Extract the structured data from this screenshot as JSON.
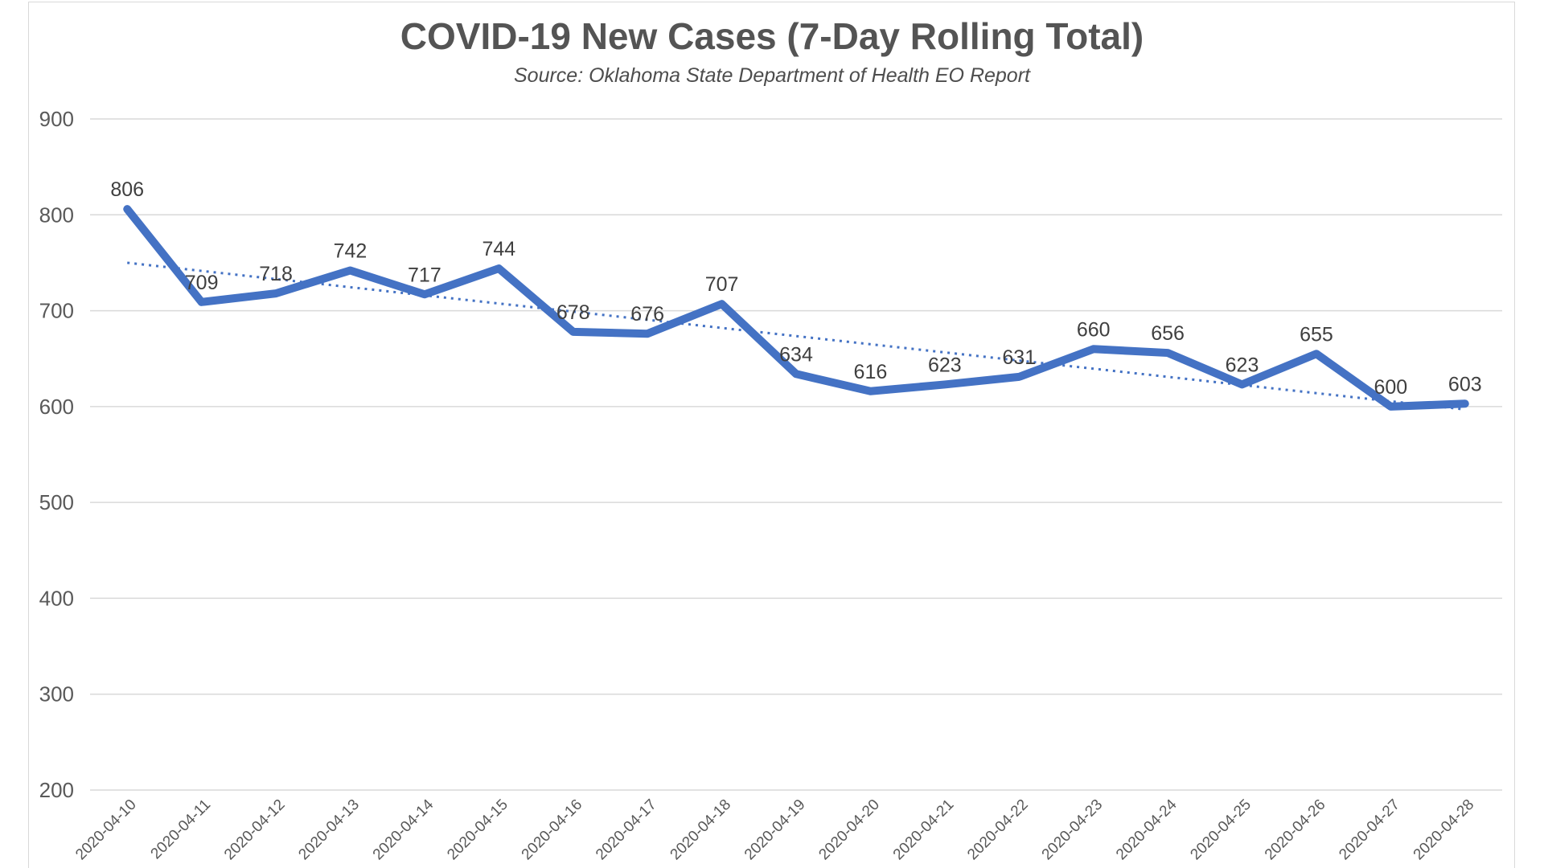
{
  "header": {
    "title": "COVID-19 New Cases (7-Day Rolling Total)",
    "subtitle": "Source: Oklahoma State Department of Health EO Report"
  },
  "colors": {
    "series_line": "#4472c4",
    "trendline": "#4472c4",
    "gridline": "#d9d9d9",
    "frame_border": "#d9d9d9",
    "axis_tick_text": "#595959",
    "data_label_text": "#3f3f3f",
    "title_text": "#545454"
  },
  "chart_data": {
    "type": "line",
    "title": "COVID-19 New Cases (7-Day Rolling Total)",
    "subtitle": "Source: Oklahoma State Department of Health EO Report",
    "categories": [
      "2020-04-10",
      "2020-04-11",
      "2020-04-12",
      "2020-04-13",
      "2020-04-14",
      "2020-04-15",
      "2020-04-16",
      "2020-04-17",
      "2020-04-18",
      "2020-04-19",
      "2020-04-20",
      "2020-04-21",
      "2020-04-22",
      "2020-04-23",
      "2020-04-24",
      "2020-04-25",
      "2020-04-26",
      "2020-04-27",
      "2020-04-28"
    ],
    "values": [
      806,
      709,
      718,
      742,
      717,
      744,
      678,
      676,
      707,
      634,
      616,
      623,
      631,
      660,
      656,
      623,
      655,
      600,
      603
    ],
    "data_labels_shown": true,
    "ylim": [
      200,
      900
    ],
    "yticks": [
      200,
      300,
      400,
      500,
      600,
      700,
      800,
      900
    ],
    "grid": "horizontal",
    "legend": false,
    "trendline": {
      "style": "dotted",
      "start_value": 750,
      "end_value": 597
    }
  }
}
